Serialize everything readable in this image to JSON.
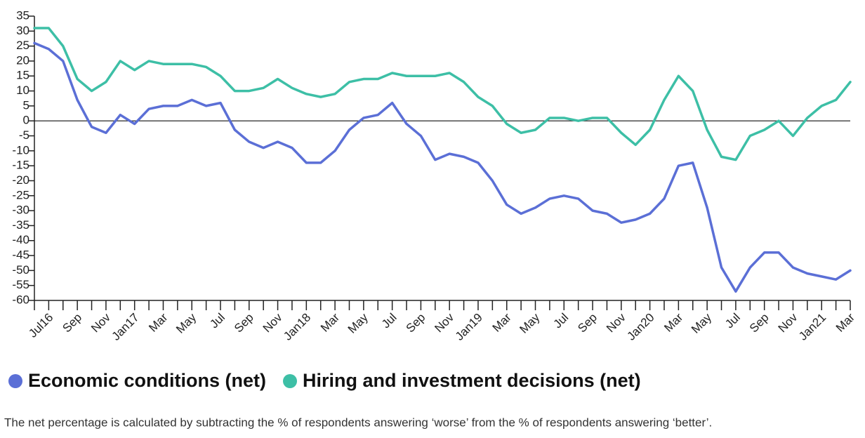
{
  "chart_data": {
    "type": "line",
    "categories": [
      null,
      "Jul16",
      null,
      "Sep",
      null,
      "Nov",
      null,
      "Jan17",
      null,
      "Mar",
      null,
      "May",
      null,
      "Jul",
      null,
      "Sep",
      null,
      "Nov",
      null,
      "Jan18",
      null,
      "Mar",
      null,
      "May",
      null,
      "Jul",
      null,
      "Sep",
      null,
      "Nov",
      null,
      "Jan19",
      null,
      "Mar",
      null,
      "May",
      null,
      "Jul",
      null,
      "Sep",
      null,
      "Nov",
      null,
      "Jan20",
      null,
      "Mar",
      null,
      "May",
      null,
      "Jul",
      null,
      "Sep",
      null,
      "Nov",
      null,
      "Jan21",
      null,
      "Mar"
    ],
    "series": [
      {
        "name": "Economic conditions (net)",
        "color": "#5b6fd6",
        "values": [
          26,
          24,
          20,
          7,
          -2,
          -4,
          2,
          -1,
          4,
          5,
          5,
          7,
          5,
          6,
          -3,
          -7,
          -9,
          -7,
          -9,
          -14,
          -14,
          -10,
          -3,
          1,
          2,
          6,
          -1,
          -5,
          -13,
          -11,
          -12,
          -14,
          -20,
          -28,
          -31,
          -29,
          -26,
          -25,
          -26,
          -30,
          -31,
          -34,
          -33,
          -31,
          -26,
          -15,
          -14,
          -29,
          -49,
          -57,
          -49,
          -44,
          -44,
          -49,
          -51,
          -52,
          -53,
          -50
        ]
      },
      {
        "name": "Hiring and investment decisions (net)",
        "color": "#3dbfa6",
        "values": [
          31,
          31,
          25,
          14,
          10,
          13,
          20,
          17,
          20,
          19,
          19,
          19,
          18,
          15,
          10,
          10,
          11,
          14,
          11,
          9,
          8,
          9,
          13,
          14,
          14,
          16,
          15,
          15,
          15,
          16,
          13,
          8,
          5,
          -1,
          -4,
          -3,
          1,
          1,
          0,
          1,
          1,
          -4,
          -8,
          -3,
          7,
          15,
          10,
          -3,
          -12,
          -13,
          -5,
          -3,
          0,
          -5,
          1,
          5,
          7,
          13
        ]
      }
    ],
    "ylim": [
      -60,
      35
    ],
    "yticks": [
      35,
      30,
      25,
      20,
      15,
      10,
      5,
      0,
      -5,
      -10,
      -15,
      -20,
      -25,
      -30,
      -35,
      -40,
      -45,
      -50,
      -55,
      -60
    ],
    "zero_line": true,
    "note": "The net percentage is calculated by subtracting the % of respondents answering ‘worse’ from the % of respondents answering ‘better’."
  }
}
